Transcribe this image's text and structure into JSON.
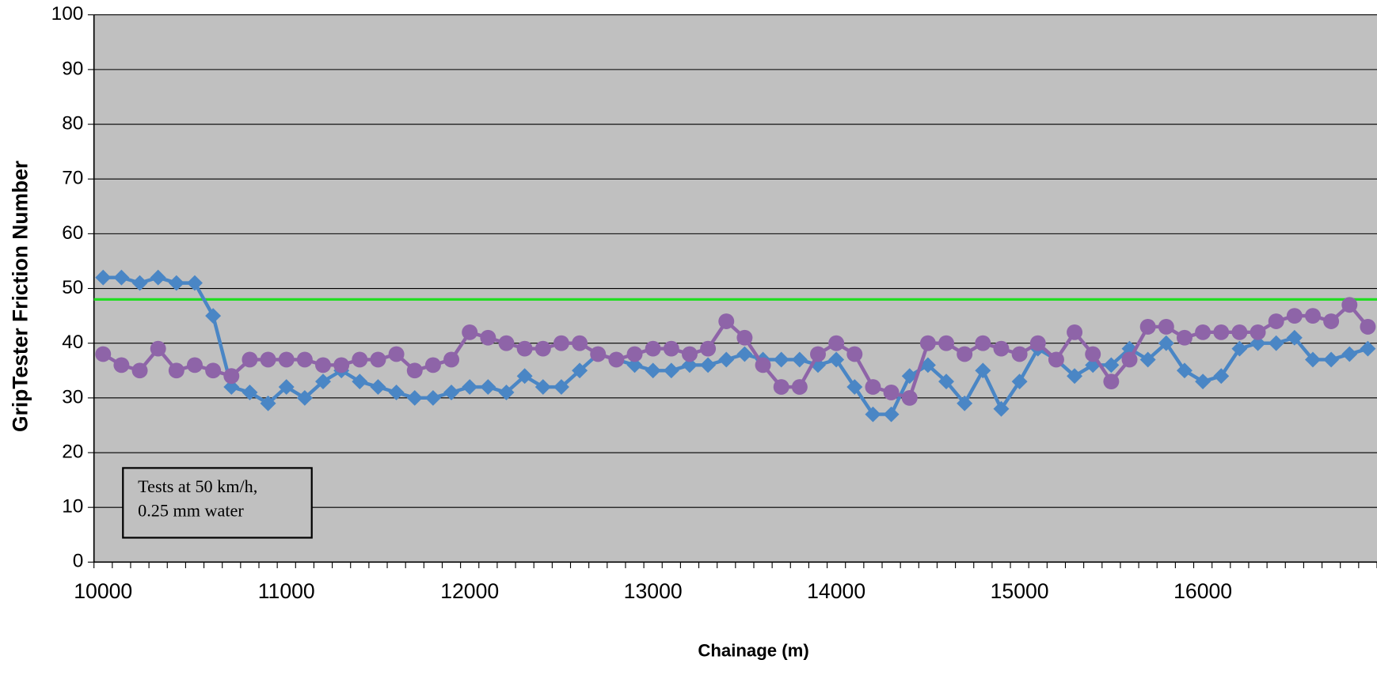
{
  "chart_data": {
    "type": "line",
    "y_label": "GripTester Friction Number",
    "x_label": "Chainage (m)",
    "annotation": [
      "Tests at 50 km/h,",
      "0.25 mm water"
    ],
    "categories": [
      "10000",
      null,
      null,
      null,
      null,
      null,
      null,
      null,
      null,
      null,
      "11000",
      null,
      null,
      null,
      null,
      null,
      null,
      null,
      null,
      null,
      "12000",
      null,
      null,
      null,
      null,
      null,
      null,
      null,
      null,
      null,
      "13000",
      null,
      null,
      null,
      null,
      null,
      null,
      null,
      null,
      null,
      "14000",
      null,
      null,
      null,
      null,
      null,
      null,
      null,
      null,
      null,
      "15000",
      null,
      null,
      null,
      null,
      null,
      null,
      null,
      null,
      null,
      "16000",
      null,
      null,
      null,
      null,
      null,
      null,
      null,
      null,
      null
    ],
    "series": [
      {
        "color": "#4a86c5",
        "marker": "diamond",
        "values": [
          52,
          52,
          51,
          52,
          51,
          51,
          45,
          32,
          31,
          29,
          32,
          30,
          33,
          35,
          33,
          32,
          31,
          30,
          30,
          31,
          32,
          32,
          31,
          34,
          32,
          32,
          35,
          38,
          37,
          36,
          35,
          35,
          36,
          36,
          37,
          38,
          37,
          37,
          37,
          36,
          37,
          32,
          27,
          27,
          34,
          36,
          33,
          29,
          35,
          28,
          33,
          39,
          37,
          34,
          36,
          36,
          39,
          37,
          40,
          35,
          33,
          34,
          39,
          40,
          40,
          41,
          37,
          37,
          38,
          39
        ]
      },
      {
        "color": "#8e64a8",
        "marker": "circle",
        "values": [
          38,
          36,
          35,
          39,
          35,
          36,
          35,
          34,
          37,
          37,
          37,
          37,
          36,
          36,
          37,
          37,
          38,
          35,
          36,
          37,
          42,
          41,
          40,
          39,
          39,
          40,
          40,
          38,
          37,
          38,
          39,
          39,
          38,
          39,
          44,
          41,
          36,
          32,
          32,
          38,
          40,
          38,
          32,
          31,
          30,
          40,
          40,
          38,
          40,
          39,
          38,
          40,
          37,
          42,
          38,
          33,
          37,
          43,
          43,
          41,
          42,
          42,
          42,
          42,
          44,
          45,
          45,
          44,
          47,
          43
        ]
      }
    ],
    "reference_line": {
      "value": 48,
      "color": "#22dd22"
    },
    "ylim": [
      0,
      100
    ],
    "yticks": [
      0,
      10,
      20,
      30,
      40,
      50,
      60,
      70,
      80,
      90,
      100
    ],
    "grid": true,
    "background": "#c0c0c0"
  }
}
